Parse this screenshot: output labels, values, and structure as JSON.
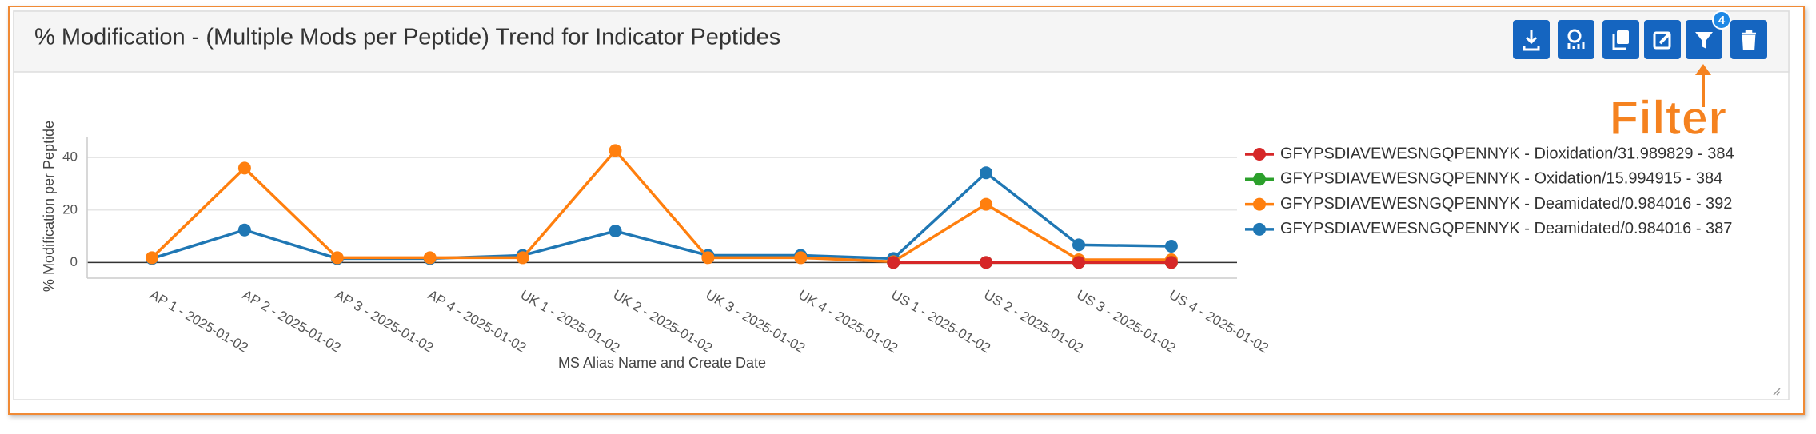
{
  "annotation": "Filter",
  "toolbar": {
    "filter_badge": 4
  },
  "chart_data": {
    "type": "line",
    "title": "% Modification - (Multiple Mods per Peptide) Trend for Indicator Peptides",
    "x_label": "MS Alias Name and Create Date",
    "y_label": "% Modification per Peptide",
    "categories": [
      "AP 1 - 2025-01-02",
      "AP 2 - 2025-01-02",
      "AP 3 - 2025-01-02",
      "AP 4 - 2025-01-02",
      "UK 1 - 2025-01-02",
      "UK 2 - 2025-01-02",
      "UK 3 - 2025-01-02",
      "UK 4 - 2025-01-02",
      "US 1 - 2025-01-02",
      "US 2 - 2025-01-02",
      "US 3 - 2025-01-02",
      "US 4 - 2025-01-02"
    ],
    "series": [
      {
        "name": "GFYPSDIAVEWESNGQPENNYK - Dioxidation/31.989829 - 384",
        "color": "#d62728",
        "values": [
          null,
          null,
          null,
          null,
          null,
          null,
          null,
          null,
          0,
          0,
          0,
          0
        ]
      },
      {
        "name": "GFYPSDIAVEWESNGQPENNYK - Oxidation/15.994915 - 384",
        "color": "#2ca02c",
        "values": [
          null,
          null,
          null,
          null,
          null,
          null,
          null,
          null,
          0,
          0,
          0,
          0
        ]
      },
      {
        "name": "GFYPSDIAVEWESNGQPENNYK - Deamidated/0.984016 - 392",
        "color": "#ff7f0e",
        "values": [
          1.8,
          36,
          1.8,
          1.8,
          1.8,
          42.7,
          1.8,
          1.8,
          0.3,
          22.2,
          1,
          1
        ]
      },
      {
        "name": "GFYPSDIAVEWESNGQPENNYK - Deamidated/0.984016 - 387",
        "color": "#1f77b4",
        "values": [
          1.5,
          12.4,
          1.5,
          1.5,
          2.7,
          12,
          2.7,
          2.7,
          1.5,
          34.2,
          6.7,
          6.2
        ]
      }
    ],
    "ylim": [
      -6,
      48
    ],
    "yticks": [
      0,
      20,
      40
    ],
    "grid": true,
    "legend": "right"
  }
}
